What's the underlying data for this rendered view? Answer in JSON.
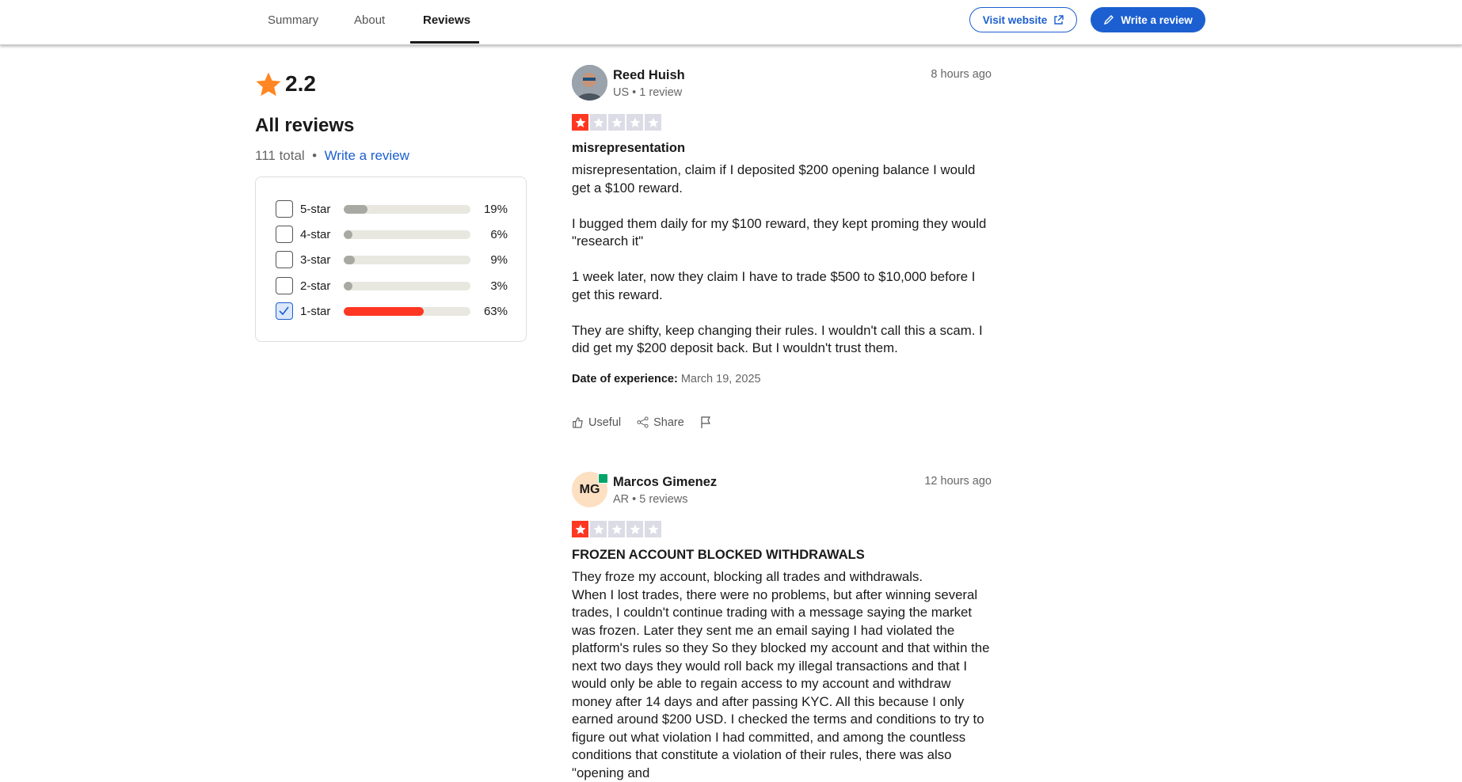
{
  "nav": {
    "tabs": [
      "Summary",
      "About",
      "Reviews"
    ],
    "visit_website": "Visit website",
    "write_review": "Write a review"
  },
  "summary": {
    "rating": 2.2,
    "heading": "All reviews",
    "total": "111 total",
    "write_review": "Write a review",
    "distribution": [
      {
        "label": "5-star",
        "percent": {
          "value": 19,
          "label": "19%"
        },
        "checked": false
      },
      {
        "label": "4-star",
        "percent": {
          "value": 6,
          "label": "6%"
        },
        "checked": false
      },
      {
        "label": "3-star",
        "percent": {
          "value": 9,
          "label": "9%"
        },
        "checked": false
      },
      {
        "label": "2-star",
        "percent": {
          "value": 3,
          "label": "3%"
        },
        "checked": false
      },
      {
        "label": "1-star",
        "percent": {
          "value": 63,
          "label": "63%"
        },
        "checked": true
      }
    ]
  },
  "reviews": [
    {
      "name": "Reed Huish",
      "meta": "US • 1 review",
      "time": "8 hours ago",
      "rating": 1,
      "title": "misrepresentation",
      "body": [
        "misrepresentation, claim if I deposited $200 opening balance I would get a $100 reward.",
        "I bugged them daily for my $100 reward, they kept proming they would \"research it\"",
        "1 week later, now they claim I have to trade $500 to $10,000 before I get this reward.",
        "They are shifty, keep changing their rules. I wouldn't call this a scam. I did get my $200 deposit back. But I wouldn't trust them."
      ],
      "date_label": "Date of experience:",
      "date": "March 19, 2025",
      "useful": "Useful",
      "share": "Share"
    },
    {
      "initials": "MG",
      "name": "Marcos Gimenez",
      "meta": "AR • 5 reviews",
      "time": "12 hours ago",
      "rating": 1,
      "title": "FROZEN ACCOUNT BLOCKED WITHDRAWALS",
      "body": [
        "They froze my account, blocking all trades and withdrawals.",
        "When I lost trades, there were no problems, but after winning several trades, I couldn't continue trading with a message saying the market was frozen. Later they sent me an email saying I had violated the platform's rules so they So they blocked my account and that within the next two days they would roll back my illegal transactions and that I would only be able to regain access to my account and withdraw money after 14 days and after passing KYC. All this because I only earned around $200 USD. I checked the terms and conditions to try to figure out what violation I had committed, and among the countless conditions that constitute a violation of their rules, there was also \"opening and"
      ]
    }
  ]
}
